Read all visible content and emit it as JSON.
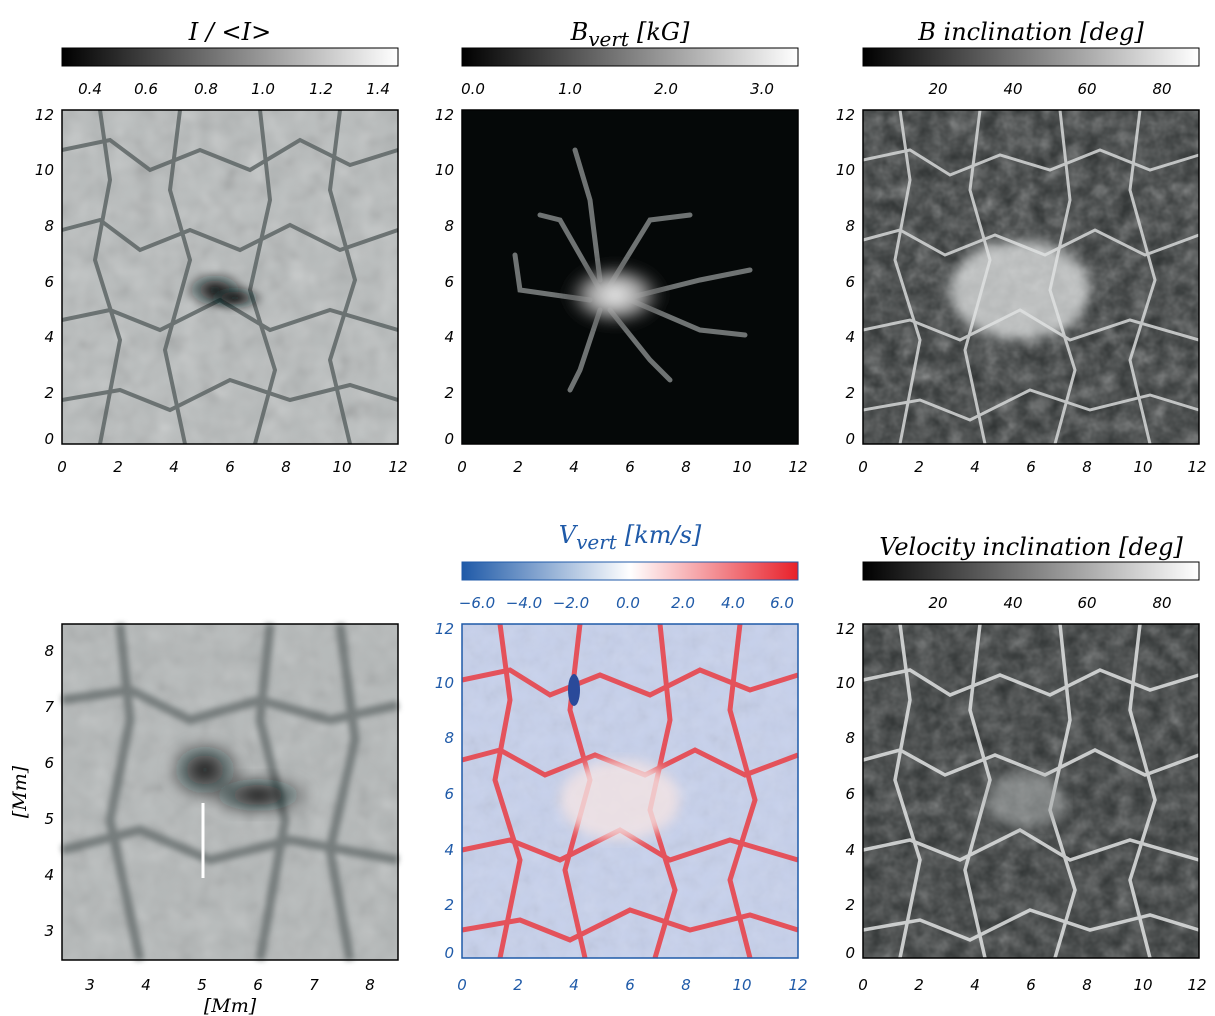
{
  "colors": {
    "axis": "#000000",
    "blue_axis": "#1f5aa8",
    "cbar_blue": "#1f5aa8",
    "cbar_red": "#e8202a",
    "white": "#ffffff"
  },
  "panels": {
    "p1": {
      "title": "I / <I>",
      "cbar_ticks": [
        "0.4",
        "0.6",
        "0.8",
        "1.0",
        "1.2",
        "1.4"
      ],
      "x_ticks": [
        "0",
        "2",
        "4",
        "6",
        "8",
        "10",
        "12"
      ],
      "y_ticks": [
        "0",
        "2",
        "4",
        "6",
        "8",
        "10",
        "12"
      ]
    },
    "p2": {
      "title_main": "B",
      "title_sub": "vert",
      "title_unit": "[kG]",
      "cbar_ticks": [
        "0.0",
        "1.0",
        "2.0",
        "3.0"
      ],
      "x_ticks": [
        "0",
        "2",
        "4",
        "6",
        "8",
        "10",
        "12"
      ],
      "y_ticks": [
        "0",
        "2",
        "4",
        "6",
        "8",
        "10",
        "12"
      ]
    },
    "p3": {
      "title": "B inclination [deg]",
      "cbar_ticks": [
        "20",
        "40",
        "60",
        "80"
      ],
      "x_ticks": [
        "0",
        "2",
        "4",
        "6",
        "8",
        "10",
        "12"
      ],
      "y_ticks": [
        "0",
        "2",
        "4",
        "6",
        "8",
        "10",
        "12"
      ]
    },
    "p4": {
      "x_ticks": [
        "3",
        "4",
        "5",
        "6",
        "7",
        "8"
      ],
      "y_ticks": [
        "3",
        "4",
        "5",
        "6",
        "7",
        "8"
      ],
      "xlabel": "[Mm]",
      "ylabel": "[Mm]"
    },
    "p5": {
      "title_main": "V",
      "title_sub": "vert",
      "title_unit": "[km/s]",
      "cbar_ticks": [
        "−6.0",
        "−4.0",
        "−2.0",
        "0.0",
        "2.0",
        "4.0",
        "6.0"
      ],
      "x_ticks": [
        "0",
        "2",
        "4",
        "6",
        "8",
        "10",
        "12"
      ],
      "y_ticks": [
        "0",
        "2",
        "4",
        "6",
        "8",
        "10",
        "12"
      ]
    },
    "p6": {
      "title": "Velocity inclination [deg]",
      "cbar_ticks": [
        "20",
        "40",
        "60",
        "80"
      ],
      "x_ticks": [
        "0",
        "2",
        "4",
        "6",
        "8",
        "10",
        "12"
      ],
      "y_ticks": [
        "0",
        "2",
        "4",
        "6",
        "8",
        "10",
        "12"
      ]
    }
  }
}
